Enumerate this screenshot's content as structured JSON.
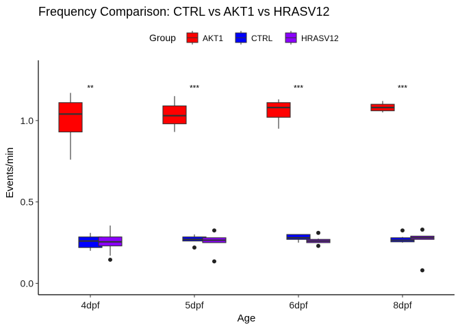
{
  "chart_data": {
    "type": "boxplot",
    "title": "Frequency Comparison: CTRL vs AKT1 vs HRASV12",
    "xlabel": "Age",
    "ylabel": "Events/min",
    "ylim": [
      -0.07,
      1.37
    ],
    "yticks": [
      "0.0",
      "0.5",
      "1.0"
    ],
    "ytick_values": [
      0.0,
      0.5,
      1.0
    ],
    "grid": false,
    "legend": {
      "title": "Group",
      "placement": "top",
      "entries": [
        {
          "name": "AKT1",
          "color": "#ff0000"
        },
        {
          "name": "CTRL",
          "color": "#0000ff"
        },
        {
          "name": "HRASV12",
          "color": "#8b00ff"
        }
      ]
    },
    "categories": [
      "4dpf",
      "5dpf",
      "6dpf",
      "8dpf"
    ],
    "annotations": [
      "**",
      "***",
      "***",
      "***"
    ],
    "annotation_y": 1.2,
    "series": [
      {
        "name": "AKT1",
        "color": "#ff0000",
        "boxes": [
          {
            "min": 0.76,
            "q1": 0.93,
            "median": 1.04,
            "q3": 1.11,
            "max": 1.17,
            "outliers": []
          },
          {
            "min": 0.93,
            "q1": 0.98,
            "median": 1.03,
            "q3": 1.09,
            "max": 1.15,
            "outliers": []
          },
          {
            "min": 0.95,
            "q1": 1.02,
            "median": 1.08,
            "q3": 1.11,
            "max": 1.13,
            "outliers": []
          },
          {
            "min": 1.05,
            "q1": 1.06,
            "median": 1.08,
            "q3": 1.1,
            "max": 1.12,
            "outliers": []
          }
        ]
      },
      {
        "name": "CTRL",
        "color": "#0000ff",
        "boxes": [
          {
            "min": 0.2,
            "q1": 0.22,
            "median": 0.26,
            "q3": 0.285,
            "max": 0.31,
            "outliers": []
          },
          {
            "min": 0.26,
            "q1": 0.26,
            "median": 0.27,
            "q3": 0.285,
            "max": 0.3,
            "outliers": [
              0.22
            ]
          },
          {
            "min": 0.25,
            "q1": 0.27,
            "median": 0.28,
            "q3": 0.3,
            "max": 0.3,
            "outliers": []
          },
          {
            "min": 0.25,
            "q1": 0.255,
            "median": 0.265,
            "q3": 0.28,
            "max": 0.285,
            "outliers": [
              0.325
            ]
          }
        ]
      },
      {
        "name": "HRASV12",
        "color": "#8b00ff",
        "boxes": [
          {
            "min": 0.17,
            "q1": 0.23,
            "median": 0.255,
            "q3": 0.285,
            "max": 0.355,
            "outliers": [
              0.145
            ]
          },
          {
            "min": 0.25,
            "q1": 0.25,
            "median": 0.265,
            "q3": 0.28,
            "max": 0.28,
            "outliers": [
              0.135,
              0.325
            ]
          },
          {
            "min": 0.25,
            "q1": 0.25,
            "median": 0.26,
            "q3": 0.27,
            "max": 0.275,
            "outliers": [
              0.23,
              0.31
            ]
          },
          {
            "min": 0.27,
            "q1": 0.27,
            "median": 0.28,
            "q3": 0.29,
            "max": 0.29,
            "outliers": [
              0.08,
              0.33
            ]
          }
        ]
      }
    ]
  }
}
